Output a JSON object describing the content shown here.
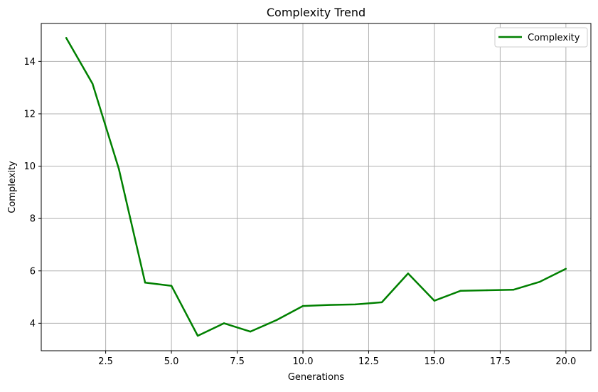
{
  "chart_data": {
    "type": "line",
    "title": "Complexity Trend",
    "xlabel": "Generations",
    "ylabel": "Complexity",
    "xlim": [
      0.05,
      20.95
    ],
    "ylim": [
      2.95,
      15.45
    ],
    "xticks": [
      2.5,
      5.0,
      7.5,
      10.0,
      12.5,
      15.0,
      17.5,
      20.0
    ],
    "xtick_labels": [
      "2.5",
      "5.0",
      "7.5",
      "10.0",
      "12.5",
      "15.0",
      "17.5",
      "20.0"
    ],
    "yticks": [
      4,
      6,
      8,
      10,
      12,
      14
    ],
    "ytick_labels": [
      "4",
      "6",
      "8",
      "10",
      "12",
      "14"
    ],
    "grid": true,
    "legend_position": "top-right",
    "series": [
      {
        "name": "Complexity",
        "color": "#008000",
        "x": [
          1,
          2,
          3,
          4,
          5,
          6,
          7,
          8,
          9,
          10,
          11,
          12,
          13,
          14,
          15,
          16,
          17,
          18,
          19,
          20
        ],
        "y": [
          14.9,
          13.15,
          9.9,
          5.55,
          5.43,
          3.52,
          4.0,
          3.68,
          4.12,
          4.66,
          4.7,
          4.72,
          4.8,
          5.9,
          4.86,
          5.24,
          5.26,
          5.28,
          5.58,
          6.08
        ]
      }
    ]
  }
}
